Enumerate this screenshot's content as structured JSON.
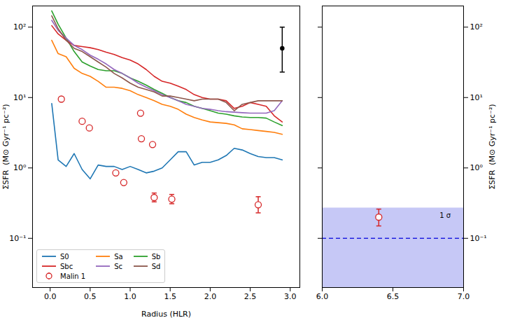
{
  "chart_data": [
    {
      "type": "line",
      "x_label": "Radius (HLR)",
      "y_label": "ΣSFR  (M⊙ Gyr⁻¹ pc⁻²)",
      "log": "y",
      "legend": "lower left",
      "xlim": [
        -0.22,
        3.12
      ],
      "xticks": [
        {
          "value": 0,
          "label": "0.0"
        },
        {
          "value": 0.5,
          "label": "0.5"
        },
        {
          "value": 1,
          "label": "1.0"
        },
        {
          "value": 1.5,
          "label": "1.5"
        },
        {
          "value": 2,
          "label": "2.0"
        },
        {
          "value": 2.5,
          "label": "2.5"
        },
        {
          "value": 3,
          "label": "3.0"
        }
      ],
      "ylim": [
        0.02,
        200
      ],
      "yticks": [
        {
          "value": 0.1,
          "label": "10⁻¹"
        },
        {
          "value": 1,
          "label": "10⁰"
        },
        {
          "value": 10,
          "label": "10¹"
        },
        {
          "value": 100,
          "label": "10²"
        }
      ],
      "x": [
        0.02,
        0.1,
        0.2,
        0.3,
        0.4,
        0.5,
        0.6,
        0.7,
        0.8,
        0.9,
        1.0,
        1.1,
        1.2,
        1.3,
        1.4,
        1.5,
        1.6,
        1.7,
        1.8,
        1.9,
        2.0,
        2.1,
        2.2,
        2.3,
        2.4,
        2.5,
        2.6,
        2.7,
        2.8,
        2.9
      ],
      "series": [
        {
          "name": "S0",
          "color": "#1f77b4",
          "type": "line",
          "line_style": "solid",
          "values": [
            8.2,
            1.3,
            1.05,
            1.6,
            0.95,
            0.7,
            1.1,
            1.05,
            1.05,
            0.95,
            1.05,
            0.95,
            0.85,
            0.9,
            1.0,
            1.3,
            1.7,
            1.7,
            1.1,
            1.2,
            1.2,
            1.3,
            1.5,
            1.9,
            1.8,
            1.6,
            1.45,
            1.4,
            1.4,
            1.3
          ]
        },
        {
          "name": "Sa",
          "color": "#ff7f0e",
          "type": "line",
          "line_style": "solid",
          "values": [
            65,
            42,
            38,
            26,
            22,
            20,
            17,
            14,
            14,
            13.5,
            12.5,
            11,
            10,
            9,
            8,
            7.5,
            6.8,
            5.8,
            5.2,
            4.8,
            4.5,
            4.4,
            4.3,
            4.1,
            3.6,
            3.5,
            3.4,
            3.3,
            3.2,
            3.0
          ]
        },
        {
          "name": "Sb",
          "color": "#2ca02c",
          "type": "line",
          "line_style": "solid",
          "values": [
            170,
            110,
            70,
            45,
            32,
            28,
            25,
            24,
            24,
            22,
            19,
            17,
            15,
            13,
            11.5,
            10,
            9,
            8.5,
            7.5,
            7,
            6.5,
            6,
            5.8,
            5.5,
            5.3,
            5.2,
            5.2,
            5.1,
            4.5,
            4.0
          ]
        },
        {
          "name": "Sbc",
          "color": "#d62728",
          "type": "line",
          "line_style": "solid",
          "values": [
            105,
            80,
            65,
            55,
            53,
            51,
            48,
            44,
            41,
            37,
            34,
            30,
            25,
            20,
            17,
            16,
            14.5,
            13,
            11,
            10,
            9.5,
            9.5,
            9,
            7,
            7.5,
            8.5,
            8,
            7.5,
            5.5,
            4.5
          ]
        },
        {
          "name": "Sc",
          "color": "#9467bd",
          "type": "line",
          "line_style": "solid",
          "values": [
            125,
            90,
            70,
            55,
            48,
            40,
            35,
            30,
            25,
            22,
            19,
            16,
            14,
            12.5,
            11,
            10,
            9,
            8,
            7.5,
            7,
            6.8,
            6.5,
            6.3,
            6.2,
            6.1,
            6.0,
            6.0,
            6.0,
            6.5,
            9
          ]
        },
        {
          "name": "Sd",
          "color": "#8c564b",
          "type": "line",
          "line_style": "solid",
          "values": [
            145,
            95,
            65,
            50,
            45,
            38,
            32,
            27,
            22,
            19,
            16,
            14,
            13,
            12,
            10.5,
            10.5,
            10,
            9.5,
            9,
            9.5,
            9.5,
            9.5,
            8.5,
            6.5,
            8,
            8.5,
            9,
            9,
            9,
            9
          ]
        },
        {
          "name": "Malin 1",
          "color": "#d62728",
          "type": "scatter",
          "marker": "circle",
          "x": [
            0.14,
            0.4,
            0.49,
            0.82,
            0.92,
            1.13,
            1.14,
            1.28,
            1.3,
            1.52,
            2.6
          ],
          "values": [
            9.5,
            4.6,
            3.7,
            0.85,
            0.62,
            6.0,
            2.6,
            2.15,
            0.38,
            0.36,
            0.3
          ],
          "error_low": [
            9.1,
            4.4,
            3.55,
            0.81,
            0.59,
            5.7,
            2.5,
            2.05,
            0.33,
            0.31,
            0.23
          ],
          "error_high": [
            9.9,
            4.8,
            3.85,
            0.89,
            0.65,
            6.3,
            2.7,
            2.25,
            0.44,
            0.42,
            0.39
          ]
        }
      ],
      "error_point": {
        "x": 2.9,
        "y": 50,
        "low": 23,
        "high": 100,
        "color": "#000000",
        "marker": "circle"
      }
    },
    {
      "type": "scatter",
      "y_label": "ΣSFR  (M⊙ Gyr⁻¹ pc⁻²)",
      "log": "y",
      "xlim": [
        6.0,
        7.0
      ],
      "xticks": [
        {
          "value": 6,
          "label": "6.0"
        },
        {
          "value": 6.5,
          "label": "6.5"
        },
        {
          "value": 7,
          "label": "7.0"
        }
      ],
      "ylim": [
        0.02,
        200
      ],
      "yticks": [
        {
          "value": 0.1,
          "label": "10⁻¹"
        },
        {
          "value": 1,
          "label": "10⁰"
        },
        {
          "value": 10,
          "label": "10¹"
        },
        {
          "value": 100,
          "label": "10²"
        }
      ],
      "points": {
        "x": [
          6.4
        ],
        "values": [
          0.2
        ],
        "error_low": [
          0.15
        ],
        "error_high": [
          0.26
        ],
        "color": "#d62728",
        "marker": "circle"
      },
      "band": {
        "low": 0.02,
        "high": 0.27,
        "color": "#c6c8f6",
        "label": "1 σ",
        "label_x": 6.87,
        "label_y": 0.21
      },
      "reference_line": {
        "value": 0.1,
        "color": "#2020e0",
        "line_style": "dashed"
      }
    }
  ]
}
